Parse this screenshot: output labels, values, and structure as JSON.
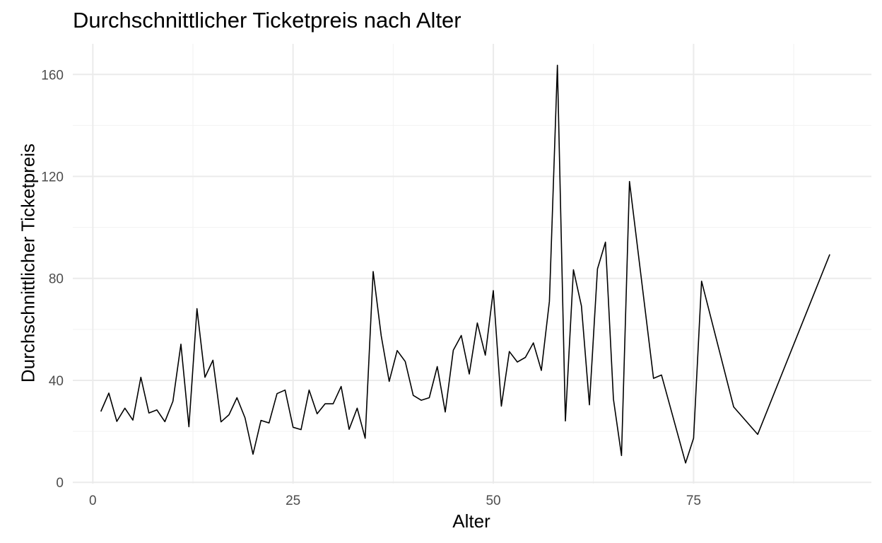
{
  "chart_data": {
    "type": "line",
    "title": "Durchschnittlicher Ticketpreis nach Alter",
    "xlabel": "Alter",
    "ylabel": "Durchschnittlicher Ticketpreis",
    "xlim": [
      -2.5,
      97.2
    ],
    "ylim": [
      -0.5,
      172
    ],
    "x_ticks": [
      0,
      25,
      50,
      75
    ],
    "x_tick_labels": [
      "0",
      "25",
      "50",
      "75"
    ],
    "y_ticks": [
      0,
      40,
      80,
      120,
      160
    ],
    "y_tick_labels": [
      "0",
      "40",
      "80",
      "120",
      "160"
    ],
    "grid": true,
    "legend": "none",
    "line_color": "#000000",
    "series": [
      {
        "x": [
          1,
          2,
          3,
          4,
          5,
          6,
          7,
          8,
          9,
          10,
          11,
          12,
          13,
          14,
          15,
          16,
          17,
          18,
          19,
          20,
          21,
          22,
          23,
          24,
          25,
          26,
          27,
          28,
          29,
          30,
          31,
          32,
          33,
          34,
          35,
          36,
          37,
          38,
          39,
          40,
          41,
          42,
          43,
          44,
          45,
          46,
          47,
          48,
          49,
          50,
          51,
          52,
          53,
          54,
          55,
          56,
          57,
          58,
          59,
          60,
          61,
          62,
          63,
          64,
          65,
          66,
          67,
          70,
          71,
          74,
          75,
          76,
          80,
          83,
          92
        ],
        "values": [
          27.8,
          35,
          23.9,
          29.1,
          24.4,
          41.2,
          27.2,
          28.4,
          23.8,
          31.8,
          54.2,
          21.8,
          68.1,
          41.2,
          47.9,
          23.7,
          26.5,
          33.2,
          25.3,
          11.0,
          24.3,
          23.3,
          34.8,
          36.2,
          21.6,
          20.7,
          36.2,
          26.9,
          30.8,
          30.8,
          37.6,
          20.8,
          29.1,
          17.3,
          82.7,
          57.5,
          39.6,
          51.7,
          47.4,
          34.1,
          32.2,
          33.2,
          45.4,
          27.6,
          51.8,
          57.6,
          42.5,
          62.5,
          49.9,
          75.2,
          29.9,
          51.3,
          47.2,
          49.0,
          54.7,
          43.9,
          71.0,
          163.6,
          24.1,
          83.4,
          69.2,
          30.4,
          83.7,
          94.2,
          32.6,
          10.5,
          118.0,
          40.8,
          42.1,
          7.6,
          17.3,
          78.9,
          29.6,
          18.8,
          89.4
        ]
      }
    ]
  }
}
